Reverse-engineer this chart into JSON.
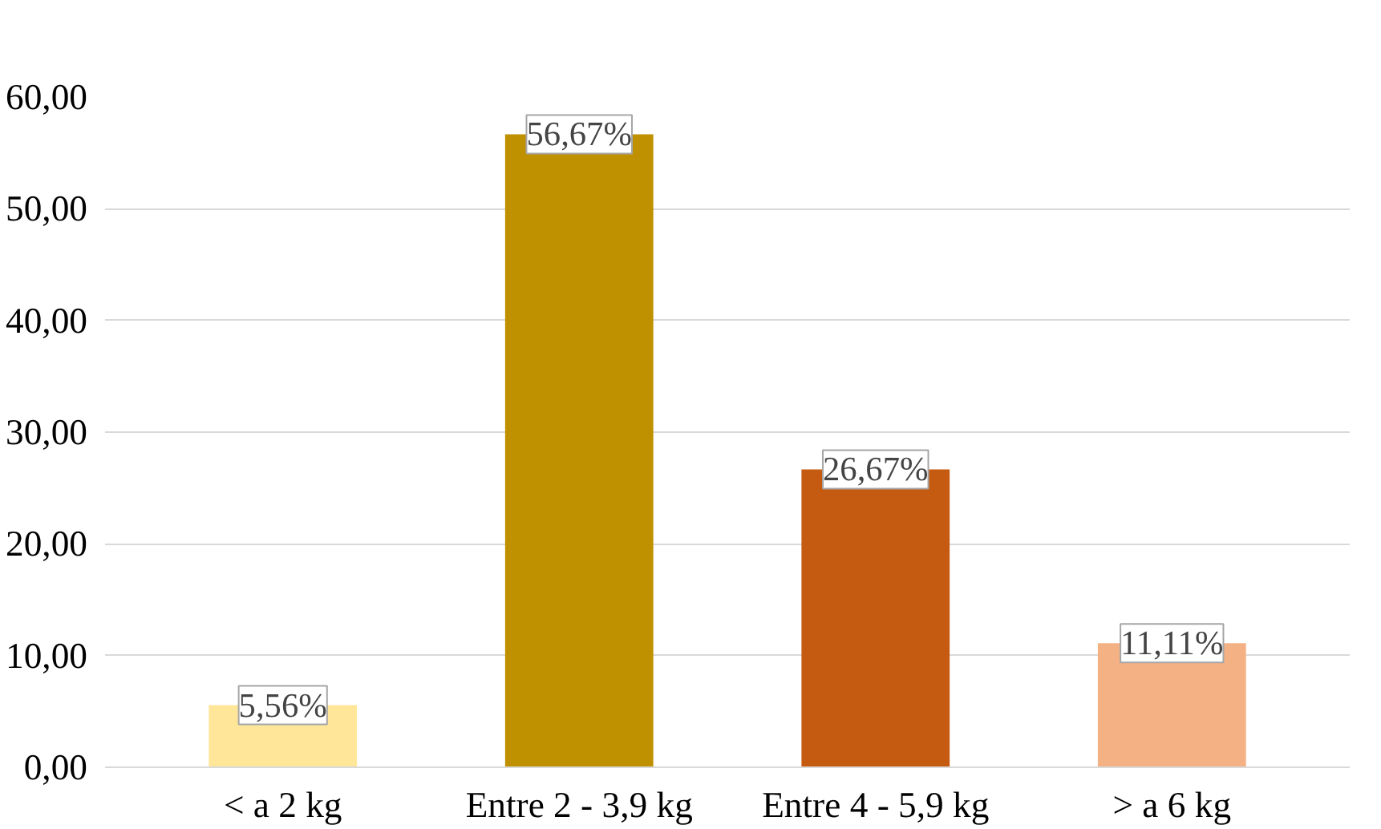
{
  "chart_data": {
    "type": "bar",
    "categories": [
      "< a 2 kg",
      "Entre 2 - 3,9 kg",
      "Entre 4 - 5,9 kg",
      "> a 6 kg"
    ],
    "values": [
      5.56,
      56.67,
      26.67,
      11.11
    ],
    "colors": [
      "#ffe699",
      "#bf9000",
      "#c55a11",
      "#f4b183"
    ],
    "value_labels": [
      "5,56%",
      "56,67%",
      "26,67%",
      "11,11%"
    ],
    "ylim": [
      0,
      60
    ],
    "yticks": [
      {
        "value": 0,
        "label": "0,00"
      },
      {
        "value": 10,
        "label": "10,00"
      },
      {
        "value": 20,
        "label": "20,00"
      },
      {
        "value": 30,
        "label": "30,00"
      },
      {
        "value": 40,
        "label": "40,00"
      },
      {
        "value": 50,
        "label": "50,00"
      },
      {
        "value": 60,
        "label": "60,00"
      }
    ],
    "grid": "y"
  }
}
